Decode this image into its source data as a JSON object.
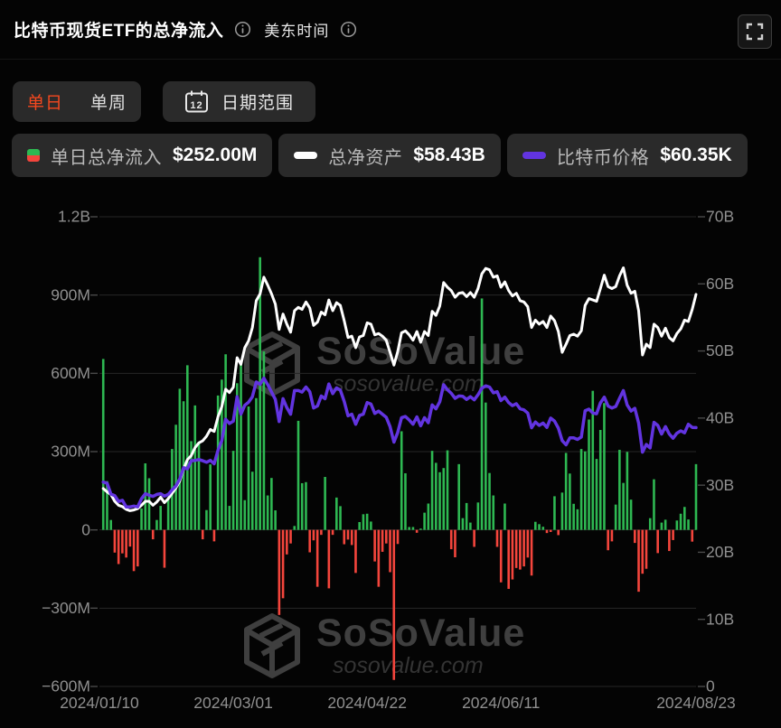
{
  "header": {
    "title": "比特币现货ETF的总净流入",
    "timezone_label": "美东时间"
  },
  "toolbar": {
    "tab_daily": "单日",
    "tab_weekly": "单周",
    "date_range_label": "日期范围",
    "calendar_day": "12"
  },
  "legend": [
    {
      "label": "单日总净流入",
      "value": "$252.00M",
      "swatch": "green-red-bar"
    },
    {
      "label": "总净资产",
      "value": "$58.43B",
      "swatch": "white-dash"
    },
    {
      "label": "比特币价格",
      "value": "$60.35K",
      "swatch": "purple-dash"
    }
  ],
  "watermark": {
    "brand": "SoSoValue",
    "domain": "sosovalue.com"
  },
  "colors": {
    "background": "#040404",
    "panel": "#2a2a2a",
    "accent_red": "#f4481f",
    "bar_positive": "#2eb852",
    "bar_negative": "#f4453c",
    "net_assets_line": "#ffffff",
    "btc_price_line": "#6234e0",
    "axis_text": "#8f8f8f",
    "gridline": "#262626",
    "tick": "#4a4a4a",
    "watermark": "#3f3f3f"
  },
  "chart_data": {
    "type": "bar+line",
    "title": "比特币现货ETF的总净流入",
    "legend_position": "top",
    "grid": true,
    "x_tick_labels": [
      "2024/01/10",
      "2024/03/01",
      "2024/04/22",
      "2024/06/11",
      "2024/08/23"
    ],
    "x_tick_slots": [
      0,
      35,
      70,
      105,
      156
    ],
    "left_axis": {
      "title": "单日总净流入",
      "unit": "USD",
      "tick_labels": [
        "1.2B",
        "900M",
        "600M",
        "300M",
        "0",
        "−300M",
        "−600M"
      ],
      "tick_values_musd": [
        1200,
        900,
        600,
        300,
        0,
        -300,
        -600
      ],
      "range_musd": [
        -600,
        1200
      ]
    },
    "right_axis": {
      "title": "总净资产",
      "unit": "USD",
      "tick_labels": [
        "70B",
        "60B",
        "50B",
        "40B",
        "30B",
        "20B",
        "10B",
        "0"
      ],
      "tick_values_busd": [
        70,
        60,
        50,
        40,
        30,
        20,
        10,
        0
      ],
      "range_busd": [
        0,
        70
      ]
    },
    "btc_hidden_axis_range_kusd": [
      -6.4,
      114.7
    ],
    "dates": [
      "2024/01/11",
      "2024/01/12",
      "2024/01/16",
      "2024/01/17",
      "2024/01/18",
      "2024/01/19",
      "2024/01/22",
      "2024/01/23",
      "2024/01/24",
      "2024/01/25",
      "2024/01/26",
      "2024/01/29",
      "2024/01/30",
      "2024/01/31",
      "2024/02/01",
      "2024/02/02",
      "2024/02/05",
      "2024/02/06",
      "2024/02/07",
      "2024/02/08",
      "2024/02/09",
      "2024/02/12",
      "2024/02/13",
      "2024/02/14",
      "2024/02/15",
      "2024/02/16",
      "2024/02/20",
      "2024/02/21",
      "2024/02/22",
      "2024/02/23",
      "2024/02/26",
      "2024/02/27",
      "2024/02/28",
      "2024/02/29",
      "2024/03/01",
      "2024/03/04",
      "2024/03/05",
      "2024/03/06",
      "2024/03/07",
      "2024/03/08",
      "2024/03/11",
      "2024/03/12",
      "2024/03/13",
      "2024/03/14",
      "2024/03/15",
      "2024/03/18",
      "2024/03/19",
      "2024/03/20",
      "2024/03/21",
      "2024/03/22",
      "2024/03/25",
      "2024/03/26",
      "2024/03/27",
      "2024/03/28",
      "2024/04/01",
      "2024/04/02",
      "2024/04/03",
      "2024/04/04",
      "2024/04/05",
      "2024/04/08",
      "2024/04/09",
      "2024/04/10",
      "2024/04/11",
      "2024/04/12",
      "2024/04/15",
      "2024/04/16",
      "2024/04/17",
      "2024/04/18",
      "2024/04/19",
      "2024/04/22",
      "2024/04/23",
      "2024/04/24",
      "2024/04/25",
      "2024/04/26",
      "2024/04/29",
      "2024/04/30",
      "2024/05/01",
      "2024/05/02",
      "2024/05/03",
      "2024/05/06",
      "2024/05/07",
      "2024/05/08",
      "2024/05/09",
      "2024/05/10",
      "2024/05/13",
      "2024/05/14",
      "2024/05/15",
      "2024/05/16",
      "2024/05/17",
      "2024/05/20",
      "2024/05/21",
      "2024/05/22",
      "2024/05/23",
      "2024/05/24",
      "2024/05/28",
      "2024/05/29",
      "2024/05/30",
      "2024/05/31",
      "2024/06/03",
      "2024/06/04",
      "2024/06/05",
      "2024/06/06",
      "2024/06/07",
      "2024/06/10",
      "2024/06/11",
      "2024/06/12",
      "2024/06/13",
      "2024/06/14",
      "2024/06/17",
      "2024/06/18",
      "2024/06/20",
      "2024/06/21",
      "2024/06/24",
      "2024/06/25",
      "2024/06/26",
      "2024/06/27",
      "2024/06/28",
      "2024/07/01",
      "2024/07/02",
      "2024/07/03",
      "2024/07/05",
      "2024/07/08",
      "2024/07/09",
      "2024/07/10",
      "2024/07/11",
      "2024/07/12",
      "2024/07/15",
      "2024/07/16",
      "2024/07/17",
      "2024/07/18",
      "2024/07/19",
      "2024/07/22",
      "2024/07/23",
      "2024/07/24",
      "2024/07/25",
      "2024/07/26",
      "2024/07/29",
      "2024/07/30",
      "2024/07/31",
      "2024/08/01",
      "2024/08/02",
      "2024/08/05",
      "2024/08/06",
      "2024/08/07",
      "2024/08/08",
      "2024/08/09",
      "2024/08/12",
      "2024/08/13",
      "2024/08/14",
      "2024/08/15",
      "2024/08/16",
      "2024/08/19",
      "2024/08/20",
      "2024/08/21",
      "2024/08/22",
      "2024/08/23"
    ],
    "series": [
      {
        "name": "单日总净流入",
        "type": "bar",
        "unit": "$M",
        "latest_label": "$252.00M",
        "values": [
          655,
          187,
          38,
          -87,
          -131,
          -90,
          -106,
          -64,
          -158,
          -140,
          82,
          255,
          198,
          -36,
          38,
          92,
          -145,
          126,
          310,
          403,
          541,
          493,
          631,
          340,
          477,
          331,
          -36,
          76,
          251,
          -44,
          515,
          576,
          673,
          92,
          303,
          562,
          648,
          114,
          473,
          223,
          505,
          1045,
          684,
          132,
          199,
          75,
          -326,
          -262,
          -94,
          -52,
          15,
          418,
          179,
          183,
          -86,
          -40,
          -218,
          -19,
          203,
          -224,
          -19,
          124,
          91,
          -55,
          -37,
          -58,
          -165,
          30,
          60,
          62,
          32,
          -121,
          -218,
          -84,
          -52,
          -162,
          -575,
          -54,
          378,
          217,
          11,
          11,
          -11,
          5,
          66,
          101,
          303,
          257,
          221,
          237,
          305,
          -74,
          -105,
          252,
          45,
          103,
          28,
          -65,
          105,
          887,
          488,
          218,
          132,
          -65,
          -201,
          101,
          -226,
          -190,
          -146,
          -152,
          -140,
          -106,
          -175,
          31,
          22,
          12,
          -12,
          -8,
          129,
          -20,
          143,
          295,
          216,
          100,
          79,
          310,
          301,
          423,
          533,
          272,
          383,
          486,
          -78,
          -44,
          97,
          307,
          180,
          299,
          116,
          -50,
          -237,
          -168,
          -149,
          45,
          194,
          -89,
          28,
          39,
          -81,
          -39,
          36,
          62,
          88,
          40,
          -45,
          252
        ]
      },
      {
        "name": "总净资产",
        "type": "line",
        "unit": "$B",
        "latest_label": "$58.43B",
        "values": [
          29.5,
          29.0,
          28.6,
          27.6,
          27.0,
          26.8,
          26.4,
          26.2,
          26.3,
          26.5,
          27.0,
          27.6,
          27.6,
          27.0,
          27.5,
          28.2,
          27.4,
          28.0,
          28.8,
          29.6,
          30.6,
          32.4,
          33.8,
          34.4,
          35.6,
          36.3,
          36.6,
          37.3,
          38.3,
          38.0,
          40.2,
          41.7,
          44.3,
          43.8,
          44.6,
          49.0,
          48.0,
          50.5,
          51.5,
          53.5,
          57.5,
          58.5,
          61.0,
          59.8,
          58.5,
          57.0,
          53.2,
          55.5,
          54.0,
          52.8,
          56.0,
          56.5,
          56.2,
          57.3,
          56.4,
          53.8,
          54.3,
          55.8,
          55.4,
          57.6,
          56.0,
          57.2,
          56.8,
          54.5,
          52.0,
          52.2,
          50.5,
          52.1,
          52.3,
          54.2,
          54.0,
          52.4,
          52.6,
          52.2,
          51.6,
          49.8,
          47.9,
          49.9,
          52.7,
          53.0,
          52.4,
          51.6,
          52.9,
          51.3,
          52.9,
          52.3,
          55.9,
          55.3,
          56.7,
          60.2,
          59.5,
          59.0,
          58.0,
          58.6,
          58.7,
          58.1,
          58.7,
          58.0,
          59.3,
          61.5,
          62.3,
          62.1,
          61.0,
          61.2,
          59.5,
          60.3,
          59.0,
          58.2,
          58.6,
          57.5,
          57.3,
          56.6,
          53.5,
          54.6,
          54.0,
          54.4,
          53.5,
          55.2,
          54.5,
          52.9,
          49.8,
          51.0,
          52.3,
          52.5,
          52.2,
          53.0,
          56.8,
          57.8,
          57.6,
          57.4,
          59.3,
          61.3,
          59.6,
          59.3,
          59.6,
          61.2,
          62.4,
          59.8,
          58.6,
          58.9,
          56.0,
          49.4,
          51.0,
          50.5,
          54.0,
          53.5,
          52.2,
          53.4,
          52.0,
          51.5,
          52.6,
          53.3,
          54.6,
          54.4,
          56.2,
          58.43
        ]
      },
      {
        "name": "比特币价格",
        "type": "line",
        "unit": "$K",
        "latest_label": "$60.35K",
        "values": [
          46.3,
          46.0,
          43.2,
          42.8,
          41.3,
          41.6,
          39.9,
          39.9,
          40.1,
          39.9,
          42.0,
          43.3,
          42.9,
          42.6,
          43.1,
          43.3,
          42.7,
          43.1,
          44.3,
          45.3,
          47.1,
          50.0,
          49.7,
          51.8,
          51.9,
          52.1,
          51.8,
          51.4,
          51.9,
          51.0,
          54.5,
          57.0,
          62.5,
          61.4,
          62.0,
          68.3,
          63.8,
          66.1,
          66.9,
          68.3,
          72.1,
          71.5,
          73.1,
          71.4,
          69.5,
          67.6,
          61.9,
          67.8,
          65.5,
          63.8,
          69.9,
          69.9,
          69.5,
          70.8,
          69.6,
          65.4,
          65.9,
          68.5,
          67.8,
          71.6,
          69.1,
          70.6,
          70.0,
          67.1,
          63.4,
          63.8,
          61.2,
          63.5,
          63.8,
          66.8,
          66.4,
          64.0,
          64.6,
          63.8,
          63.0,
          60.6,
          56.6,
          59.1,
          62.9,
          63.2,
          62.3,
          61.2,
          63.1,
          60.8,
          62.9,
          61.6,
          66.2,
          65.2,
          67.0,
          71.4,
          70.1,
          69.2,
          67.9,
          68.5,
          68.4,
          67.6,
          68.3,
          67.5,
          68.8,
          70.5,
          71.1,
          70.8,
          69.3,
          69.6,
          67.3,
          68.2,
          66.8,
          66.0,
          66.5,
          65.2,
          64.9,
          64.1,
          60.3,
          61.8,
          60.9,
          61.5,
          60.4,
          62.8,
          62.0,
          60.2,
          57.0,
          55.9,
          57.7,
          57.7,
          57.3,
          57.9,
          64.7,
          65.1,
          64.1,
          63.9,
          66.7,
          68.2,
          65.9,
          65.4,
          65.8,
          67.9,
          69.9,
          66.2,
          64.6,
          65.3,
          61.5,
          54.0,
          56.0,
          55.1,
          61.7,
          60.9,
          58.7,
          60.6,
          58.7,
          57.6,
          58.9,
          59.5,
          59.0,
          61.2,
          60.4,
          60.35
        ]
      }
    ]
  }
}
